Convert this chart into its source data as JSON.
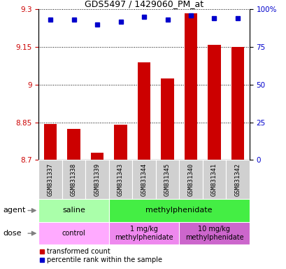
{
  "title": "GDS5497 / 1429060_PM_at",
  "samples": [
    "GSM831337",
    "GSM831338",
    "GSM831339",
    "GSM831343",
    "GSM831344",
    "GSM831345",
    "GSM831340",
    "GSM831341",
    "GSM831342"
  ],
  "bar_values": [
    8.845,
    8.825,
    8.73,
    8.84,
    9.09,
    9.025,
    9.285,
    9.16,
    9.15
  ],
  "bar_bottom": 8.7,
  "percentile_values": [
    93,
    93,
    90,
    92,
    95,
    93,
    96,
    94,
    94
  ],
  "ylim_left": [
    8.7,
    9.3
  ],
  "ylim_right": [
    0,
    100
  ],
  "yticks_left": [
    8.7,
    8.85,
    9.0,
    9.15,
    9.3
  ],
  "ytick_labels_left": [
    "8.7",
    "8.85",
    "9",
    "9.15",
    "9.3"
  ],
  "yticks_right": [
    0,
    25,
    50,
    75,
    100
  ],
  "ytick_labels_right": [
    "0",
    "25",
    "50",
    "75",
    "100%"
  ],
  "bar_color": "#cc0000",
  "dot_color": "#0000cc",
  "agent_groups": [
    {
      "label": "saline",
      "start": 0,
      "end": 3,
      "color": "#aaffaa"
    },
    {
      "label": "methylphenidate",
      "start": 3,
      "end": 9,
      "color": "#44ee44"
    }
  ],
  "dose_groups": [
    {
      "label": "control",
      "start": 0,
      "end": 3,
      "color": "#ffaaff"
    },
    {
      "label": "1 mg/kg\nmethylphenidate",
      "start": 3,
      "end": 6,
      "color": "#ee88ee"
    },
    {
      "label": "10 mg/kg\nmethylphenidate",
      "start": 6,
      "end": 9,
      "color": "#cc66cc"
    }
  ],
  "legend_red_label": "transformed count",
  "legend_blue_label": "percentile rank within the sample",
  "tick_label_color_left": "#cc0000",
  "tick_label_color_right": "#0000cc",
  "label_agent": "agent",
  "label_dose": "dose",
  "sample_box_color": "#d0d0d0",
  "title_fontsize": 9,
  "axis_fontsize": 7.5,
  "legend_fontsize": 7,
  "bar_width": 0.55
}
